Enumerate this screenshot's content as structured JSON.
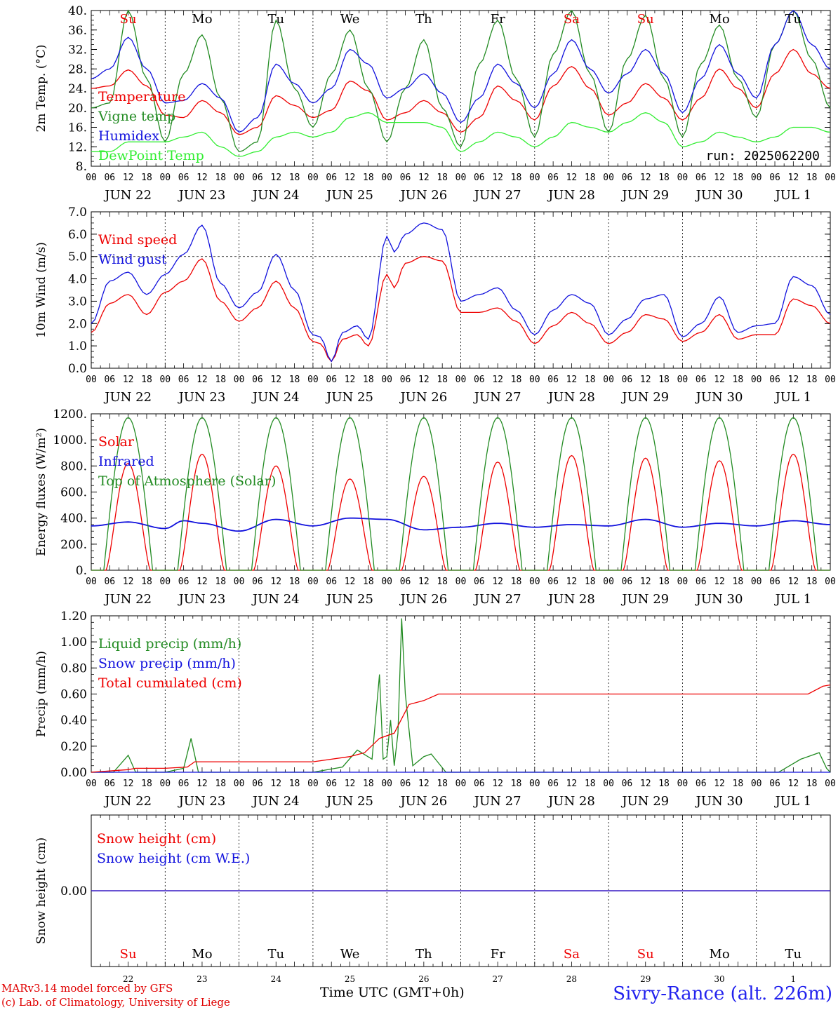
{
  "meta": {
    "run_label": "run: 2025062200",
    "model_line": "MARv3.14 model forced by GFS",
    "credit_line": "(c) Lab. of Climatology, University of Liege",
    "xlabel": "Time UTC (GMT+0h)",
    "location": "Sivry-Rance (alt. 226m)"
  },
  "colors": {
    "red": "#ee0000",
    "green": "#228b22",
    "blue": "#1111dd",
    "lightgreen": "#33ee33",
    "black": "#000000"
  },
  "days": {
    "weekday": [
      "Su",
      "Mo",
      "Tu",
      "We",
      "Th",
      "Fr",
      "Sa",
      "Su",
      "Mo",
      "Tu"
    ],
    "weekend": [
      true,
      false,
      false,
      false,
      false,
      false,
      true,
      true,
      false,
      false
    ],
    "date": [
      "JUN 22",
      "JUN 23",
      "JUN 24",
      "JUN 25",
      "JUN 26",
      "JUN 27",
      "JUN 28",
      "JUN 29",
      "JUN 30",
      "JUL  1"
    ],
    "daynum": [
      "22",
      "23",
      "24",
      "25",
      "26",
      "27",
      "28",
      "29",
      "30",
      "1"
    ],
    "hour_ticks": [
      "00",
      "06",
      "12",
      "18"
    ],
    "final_hour": "00"
  },
  "chart_data": [
    {
      "type": "line",
      "ylabel": "2m Temp. (°C)",
      "ylim": [
        8,
        40
      ],
      "yticks": [
        "8.",
        "12.",
        "16.",
        "20.",
        "24.",
        "28.",
        "32.",
        "36.",
        "40."
      ],
      "x_unit": "days since JUN 22 00 UTC",
      "series": [
        {
          "name": "Temperature",
          "color": "red",
          "x": [
            0,
            0.25,
            0.5,
            0.75,
            1,
            1.25,
            1.5,
            1.75,
            2,
            2.25,
            2.5,
            2.75,
            3,
            3.25,
            3.5,
            3.75,
            4,
            4.25,
            4.5,
            4.75,
            5,
            5.25,
            5.5,
            5.75,
            6,
            6.25,
            6.5,
            6.75,
            7,
            7.25,
            7.5,
            7.75,
            8,
            8.25,
            8.5,
            8.75,
            9,
            9.25,
            9.5,
            9.75,
            10
          ],
          "y": [
            24,
            24.5,
            27.8,
            24.5,
            18.5,
            18,
            21.5,
            19,
            14.5,
            16,
            22.5,
            20.5,
            18,
            19.5,
            25.5,
            23.5,
            17.5,
            19,
            21.5,
            19,
            15,
            18,
            24.5,
            21.5,
            17.5,
            24.5,
            28.5,
            24,
            18.5,
            21,
            25,
            22,
            17.5,
            22,
            28,
            24,
            20,
            27,
            32,
            27,
            24
          ]
        },
        {
          "name": "Vigne temp",
          "color": "green",
          "x": [
            0,
            0.25,
            0.5,
            0.75,
            1,
            1.25,
            1.5,
            1.75,
            2,
            2.25,
            2.5,
            2.75,
            3,
            3.25,
            3.5,
            3.75,
            4,
            4.25,
            4.5,
            4.75,
            5,
            5.25,
            5.5,
            5.75,
            6,
            6.25,
            6.5,
            6.75,
            7,
            7.25,
            7.5,
            7.75,
            8,
            8.25,
            8.5,
            8.75,
            9,
            9.25,
            9.5,
            9.75,
            10
          ],
          "y": [
            20,
            21,
            40,
            26,
            13,
            27,
            35,
            22,
            11,
            13,
            38,
            24,
            16,
            27,
            36,
            24,
            13,
            24,
            34,
            20,
            12,
            29,
            38,
            26,
            14,
            31,
            40,
            27,
            15,
            30,
            39,
            26,
            14,
            29,
            37,
            26,
            18,
            33,
            40,
            30,
            20
          ]
        },
        {
          "name": "Humidex",
          "color": "blue",
          "x": [
            0,
            0.25,
            0.5,
            0.75,
            1,
            1.25,
            1.5,
            1.75,
            2,
            2.25,
            2.5,
            2.75,
            3,
            3.25,
            3.5,
            3.75,
            4,
            4.25,
            4.5,
            4.75,
            5,
            5.25,
            5.5,
            5.75,
            6,
            6.25,
            6.5,
            6.75,
            7,
            7.25,
            7.5,
            7.75,
            8,
            8.25,
            8.5,
            8.75,
            9,
            9.25,
            9.5,
            9.75,
            10
          ],
          "y": [
            26,
            28,
            34.5,
            28,
            21,
            21.5,
            25,
            22,
            15,
            18,
            29,
            25,
            21,
            24,
            32,
            29,
            22,
            24,
            27,
            23,
            17,
            22,
            29,
            25,
            20,
            27,
            34,
            28,
            23,
            27,
            32,
            27,
            19,
            26,
            33,
            27,
            22,
            33,
            40,
            33,
            28
          ]
        },
        {
          "name": "DewPoint Temp",
          "color": "lightgreen",
          "x": [
            0,
            0.25,
            0.5,
            0.75,
            1,
            1.25,
            1.5,
            1.75,
            2,
            2.25,
            2.5,
            2.75,
            3,
            3.25,
            3.5,
            3.75,
            4,
            4.25,
            4.5,
            4.75,
            5,
            5.25,
            5.5,
            5.75,
            6,
            6.25,
            6.5,
            6.75,
            7,
            7.25,
            7.5,
            7.75,
            8,
            8.25,
            8.5,
            8.75,
            9,
            9.25,
            9.5,
            9.75,
            10
          ],
          "y": [
            11,
            11,
            13,
            13,
            13,
            14,
            15,
            12,
            10,
            11,
            14,
            15,
            14,
            15,
            18,
            19,
            17,
            17,
            17,
            16,
            11,
            13,
            15,
            14,
            12,
            14,
            17,
            16,
            15,
            17,
            19,
            17,
            12,
            13,
            15,
            14,
            13,
            14,
            16,
            16,
            15
          ]
        }
      ],
      "hlines": [],
      "legend_position": "top-left"
    },
    {
      "type": "line",
      "ylabel": "10m Wind (m/s)",
      "ylim": [
        0,
        7
      ],
      "yticks": [
        "0.0",
        "1.0",
        "2.0",
        "3.0",
        "4.0",
        "5.0",
        "6.0",
        "7.0"
      ],
      "x_unit": "days since JUN 22 00 UTC",
      "series": [
        {
          "name": "Wind speed",
          "color": "red",
          "x": [
            0,
            0.25,
            0.5,
            0.75,
            1,
            1.25,
            1.5,
            1.75,
            2,
            2.25,
            2.5,
            2.75,
            3,
            3.1,
            3.25,
            3.4,
            3.6,
            3.75,
            4,
            4.1,
            4.25,
            4.5,
            4.75,
            5,
            5.25,
            5.5,
            5.75,
            6,
            6.25,
            6.5,
            6.75,
            7,
            7.25,
            7.5,
            7.75,
            8,
            8.25,
            8.5,
            8.75,
            9,
            9.25,
            9.5,
            9.75,
            10
          ],
          "y": [
            1.6,
            2.9,
            3.3,
            2.4,
            3.4,
            3.9,
            4.9,
            3.0,
            2.1,
            2.7,
            3.9,
            2.7,
            1.2,
            1.1,
            0.3,
            1.3,
            1.5,
            1.0,
            4.2,
            3.6,
            4.7,
            5.0,
            4.8,
            2.5,
            2.5,
            2.7,
            2.1,
            1.1,
            1.9,
            2.5,
            2.0,
            1.1,
            1.6,
            2.4,
            2.2,
            1.2,
            1.6,
            2.4,
            1.3,
            1.5,
            1.5,
            3.1,
            2.8,
            2.0
          ]
        },
        {
          "name": "Wind gust",
          "color": "blue",
          "x": [
            0,
            0.25,
            0.5,
            0.75,
            1,
            1.25,
            1.5,
            1.75,
            2,
            2.25,
            2.5,
            2.75,
            3,
            3.1,
            3.25,
            3.4,
            3.6,
            3.75,
            4,
            4.1,
            4.25,
            4.5,
            4.75,
            5,
            5.25,
            5.5,
            5.75,
            6,
            6.25,
            6.5,
            6.75,
            7,
            7.25,
            7.5,
            7.75,
            8,
            8.25,
            8.5,
            8.75,
            9,
            9.25,
            9.5,
            9.75,
            10
          ],
          "y": [
            2.0,
            3.9,
            4.3,
            3.3,
            4.2,
            5.1,
            6.4,
            3.8,
            2.7,
            3.4,
            5.1,
            3.5,
            1.5,
            1.4,
            0.3,
            1.6,
            1.9,
            1.3,
            5.9,
            5.2,
            6.0,
            6.5,
            6.2,
            3.0,
            3.3,
            3.6,
            2.6,
            1.5,
            2.6,
            3.3,
            2.9,
            1.5,
            2.2,
            3.1,
            3.3,
            1.4,
            2.0,
            3.2,
            1.6,
            1.9,
            2.0,
            4.1,
            3.7,
            2.4
          ]
        }
      ],
      "hlines": [
        5
      ],
      "legend_position": "top-left"
    },
    {
      "type": "line",
      "ylabel": "Energy fluxes (W/m²)",
      "ylim": [
        0,
        1200
      ],
      "yticks": [
        "0.",
        "200.",
        "400.",
        "600.",
        "800.",
        "1000.",
        "1200."
      ],
      "x_unit": "days since JUN 22 00 UTC",
      "series": [
        {
          "name": "Solar",
          "color": "red",
          "daily_peaks": [
            820,
            890,
            800,
            700,
            720,
            830,
            880,
            860,
            840,
            890
          ]
        },
        {
          "name": "Infrared",
          "color": "blue",
          "x": [
            0,
            0.5,
            1,
            1.25,
            1.5,
            2,
            2.5,
            3,
            3.5,
            4,
            4.5,
            5,
            5.5,
            6,
            6.5,
            7,
            7.5,
            8,
            8.5,
            9,
            9.5,
            10
          ],
          "y": [
            340,
            370,
            320,
            380,
            360,
            300,
            390,
            340,
            400,
            390,
            310,
            330,
            360,
            330,
            350,
            340,
            390,
            330,
            360,
            340,
            380,
            350
          ]
        },
        {
          "name": "Top of Atmosphere (Solar)",
          "color": "green",
          "daily_peak": 1170
        }
      ],
      "hlines": [],
      "legend_position": "top-left"
    },
    {
      "type": "line",
      "ylabel": "Precip (mm/h)",
      "ylim": [
        0,
        1.2
      ],
      "yticks": [
        "0.00",
        "0.20",
        "0.40",
        "0.60",
        "0.80",
        "1.00",
        "1.20"
      ],
      "x_unit": "days since JUN 22 00 UTC",
      "series": [
        {
          "name": "Liquid precip (mm/h)",
          "color": "green",
          "x": [
            0,
            0.3,
            0.5,
            0.6,
            0.8,
            1,
            1.25,
            1.35,
            1.45,
            2,
            3,
            3.4,
            3.6,
            3.8,
            3.9,
            3.95,
            4,
            4.05,
            4.1,
            4.15,
            4.2,
            4.25,
            4.35,
            4.5,
            4.6,
            4.8,
            5,
            9.3,
            9.6,
            9.85,
            9.95,
            10
          ],
          "y": [
            0,
            0,
            0.13,
            0,
            0,
            0,
            0.03,
            0.26,
            0,
            0,
            0,
            0.04,
            0.17,
            0.1,
            0.75,
            0.1,
            0.12,
            0.4,
            0.05,
            0.3,
            1.18,
            0.6,
            0.05,
            0.12,
            0.14,
            0,
            0,
            0,
            0.1,
            0.15,
            0.03,
            0
          ]
        },
        {
          "name": "Snow precip (mm/h)",
          "color": "blue",
          "x": [
            0,
            10
          ],
          "y": [
            0,
            0
          ]
        },
        {
          "name": "Total cumulated (cm)",
          "color": "red",
          "x": [
            0,
            0.5,
            0.6,
            1,
            1.3,
            1.4,
            3,
            3.5,
            3.7,
            3.9,
            4.1,
            4.3,
            4.5,
            4.7,
            9.7,
            9.9,
            10
          ],
          "y": [
            0,
            0.02,
            0.03,
            0.03,
            0.04,
            0.08,
            0.08,
            0.12,
            0.15,
            0.26,
            0.3,
            0.52,
            0.55,
            0.6,
            0.6,
            0.66,
            0.67
          ]
        }
      ],
      "hlines": [],
      "legend_position": "top-left"
    },
    {
      "type": "line",
      "ylabel": "Snow height (cm)",
      "ylim": [
        -1,
        1
      ],
      "yticks": [
        "0.00"
      ],
      "x_unit": "days since JUN 22 00 UTC",
      "series": [
        {
          "name": "Snow height (cm)",
          "color": "red",
          "x": [
            0,
            10
          ],
          "y": [
            0,
            0
          ]
        },
        {
          "name": "Snow height (cm W.E.)",
          "color": "blue",
          "x": [
            0,
            10
          ],
          "y": [
            0,
            0
          ]
        }
      ],
      "hlines": [],
      "legend_position": "top-left"
    }
  ]
}
